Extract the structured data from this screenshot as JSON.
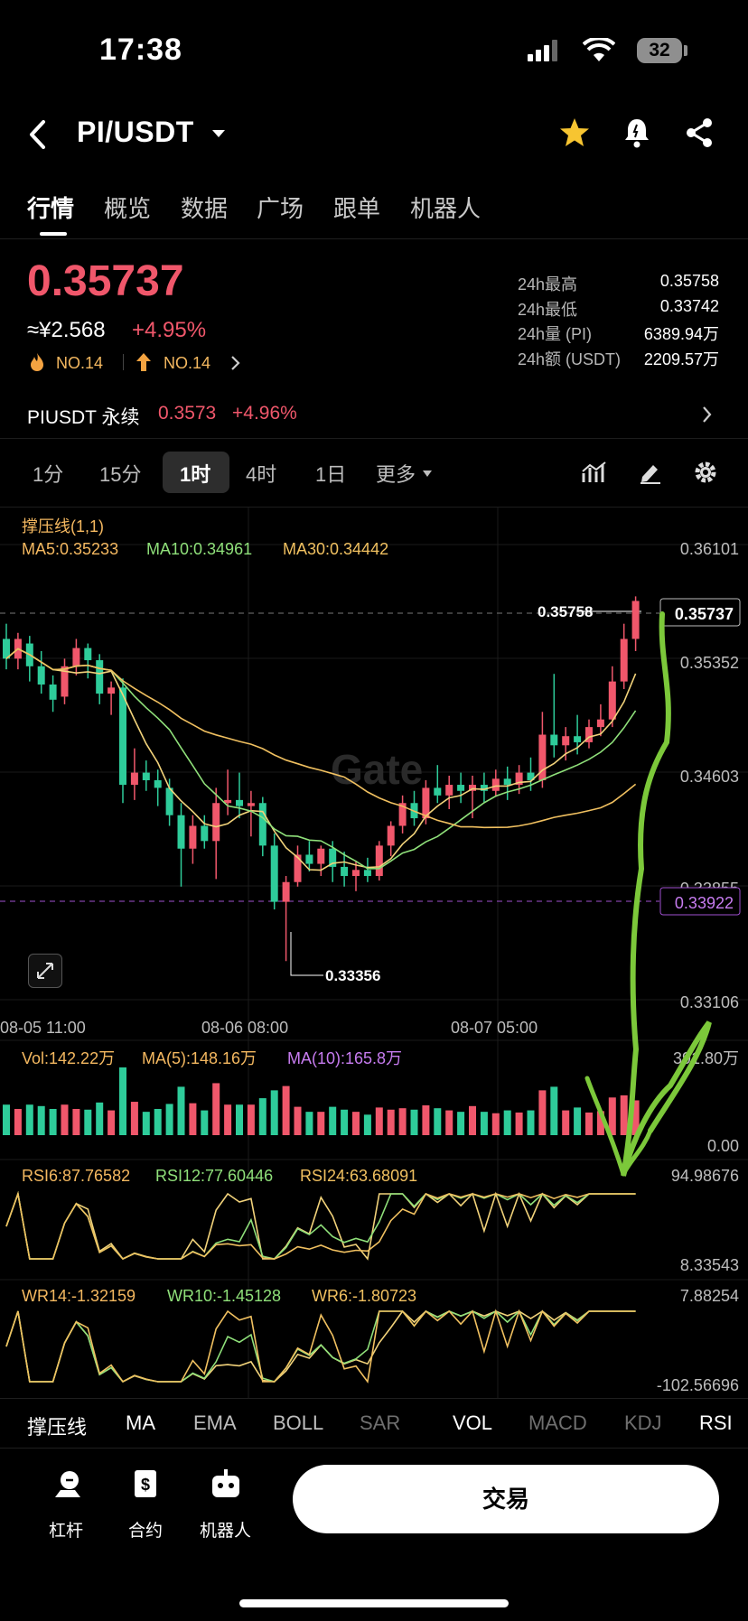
{
  "status_bar": {
    "time": "17:38",
    "battery": "32"
  },
  "header": {
    "pair": "PI/USDT"
  },
  "tabs": [
    "行情",
    "概览",
    "数据",
    "广场",
    "跟单",
    "机器人"
  ],
  "price": {
    "last": "0.35737",
    "cny": "≈¥2.568",
    "change": "+4.95%",
    "rank_hot": "NO.14",
    "rank_up": "NO.14"
  },
  "stats": [
    {
      "label": "24h最高",
      "value": "0.35758"
    },
    {
      "label": "24h最低",
      "value": "0.33742"
    },
    {
      "label": "24h量 (PI)",
      "value": "6389.94万"
    },
    {
      "label": "24h额 (USDT)",
      "value": "2209.57万"
    }
  ],
  "perp": {
    "name": "PIUSDT 永续",
    "price": "0.3573",
    "change": "+4.96%"
  },
  "intervals": [
    "1分",
    "15分",
    "1时",
    "4时",
    "1日",
    "更多"
  ],
  "chart_data": {
    "type": "candlestick",
    "indicator_title": "撑压线(1,1)",
    "ma_legend": {
      "ma5": "MA5:0.35233",
      "ma10": "MA10:0.34961",
      "ma30": "MA30:0.34442"
    },
    "y_ticks": [
      "0.36101",
      "0.35352",
      "0.34603",
      "0.33855",
      "0.33106"
    ],
    "ylim": [
      0.33106,
      0.36101
    ],
    "current_price_label": "0.35737",
    "support_line_label": "0.33922",
    "high_label": "0.35758",
    "low_label": "0.33356",
    "x_ticks": [
      "08-05 11:00",
      "08-06 08:00",
      "08-07 05:00"
    ],
    "watermark": "Gate",
    "candles": [
      {
        "o": 0.3548,
        "h": 0.3558,
        "l": 0.3528,
        "c": 0.3535
      },
      {
        "o": 0.3535,
        "h": 0.3552,
        "l": 0.3528,
        "c": 0.3548
      },
      {
        "o": 0.3545,
        "h": 0.355,
        "l": 0.352,
        "c": 0.353
      },
      {
        "o": 0.353,
        "h": 0.354,
        "l": 0.3512,
        "c": 0.3518
      },
      {
        "o": 0.3518,
        "h": 0.3524,
        "l": 0.35,
        "c": 0.3508
      },
      {
        "o": 0.351,
        "h": 0.3535,
        "l": 0.3505,
        "c": 0.353
      },
      {
        "o": 0.353,
        "h": 0.3548,
        "l": 0.3524,
        "c": 0.3542
      },
      {
        "o": 0.3542,
        "h": 0.3545,
        "l": 0.3522,
        "c": 0.3534
      },
      {
        "o": 0.3534,
        "h": 0.3538,
        "l": 0.3505,
        "c": 0.3512
      },
      {
        "o": 0.3512,
        "h": 0.352,
        "l": 0.3498,
        "c": 0.3516
      },
      {
        "o": 0.3516,
        "h": 0.3522,
        "l": 0.344,
        "c": 0.3452
      },
      {
        "o": 0.3452,
        "h": 0.3476,
        "l": 0.3442,
        "c": 0.346
      },
      {
        "o": 0.346,
        "h": 0.3468,
        "l": 0.3448,
        "c": 0.3455
      },
      {
        "o": 0.3455,
        "h": 0.3462,
        "l": 0.3438,
        "c": 0.345
      },
      {
        "o": 0.345,
        "h": 0.3456,
        "l": 0.3425,
        "c": 0.3432
      },
      {
        "o": 0.3432,
        "h": 0.344,
        "l": 0.3385,
        "c": 0.341
      },
      {
        "o": 0.341,
        "h": 0.3432,
        "l": 0.34,
        "c": 0.3425
      },
      {
        "o": 0.3425,
        "h": 0.3432,
        "l": 0.341,
        "c": 0.3415
      },
      {
        "o": 0.3415,
        "h": 0.345,
        "l": 0.339,
        "c": 0.344
      },
      {
        "o": 0.344,
        "h": 0.3462,
        "l": 0.3432,
        "c": 0.3442
      },
      {
        "o": 0.3442,
        "h": 0.346,
        "l": 0.343,
        "c": 0.3438
      },
      {
        "o": 0.3438,
        "h": 0.3448,
        "l": 0.3418,
        "c": 0.344
      },
      {
        "o": 0.344,
        "h": 0.3444,
        "l": 0.3405,
        "c": 0.3412
      },
      {
        "o": 0.3412,
        "h": 0.342,
        "l": 0.337,
        "c": 0.3375
      },
      {
        "o": 0.3375,
        "h": 0.3392,
        "l": 0.3336,
        "c": 0.3388
      },
      {
        "o": 0.3388,
        "h": 0.3412,
        "l": 0.3385,
        "c": 0.3406
      },
      {
        "o": 0.3406,
        "h": 0.3415,
        "l": 0.3395,
        "c": 0.34
      },
      {
        "o": 0.34,
        "h": 0.3412,
        "l": 0.3392,
        "c": 0.341
      },
      {
        "o": 0.341,
        "h": 0.3415,
        "l": 0.3388,
        "c": 0.3398
      },
      {
        "o": 0.3398,
        "h": 0.3408,
        "l": 0.3385,
        "c": 0.3392
      },
      {
        "o": 0.3392,
        "h": 0.3402,
        "l": 0.3382,
        "c": 0.3396
      },
      {
        "o": 0.3396,
        "h": 0.3404,
        "l": 0.3388,
        "c": 0.3392
      },
      {
        "o": 0.3392,
        "h": 0.3415,
        "l": 0.3389,
        "c": 0.3412
      },
      {
        "o": 0.3412,
        "h": 0.3428,
        "l": 0.3405,
        "c": 0.3425
      },
      {
        "o": 0.3425,
        "h": 0.3445,
        "l": 0.342,
        "c": 0.344
      },
      {
        "o": 0.344,
        "h": 0.3448,
        "l": 0.3425,
        "c": 0.343
      },
      {
        "o": 0.343,
        "h": 0.3455,
        "l": 0.3426,
        "c": 0.345
      },
      {
        "o": 0.345,
        "h": 0.3465,
        "l": 0.344,
        "c": 0.3445
      },
      {
        "o": 0.3445,
        "h": 0.3458,
        "l": 0.3436,
        "c": 0.3452
      },
      {
        "o": 0.3452,
        "h": 0.346,
        "l": 0.344,
        "c": 0.3448
      },
      {
        "o": 0.3448,
        "h": 0.3458,
        "l": 0.343,
        "c": 0.3452
      },
      {
        "o": 0.3452,
        "h": 0.346,
        "l": 0.344,
        "c": 0.3448
      },
      {
        "o": 0.3448,
        "h": 0.3462,
        "l": 0.3444,
        "c": 0.3456
      },
      {
        "o": 0.3456,
        "h": 0.3464,
        "l": 0.3442,
        "c": 0.3452
      },
      {
        "o": 0.3452,
        "h": 0.3465,
        "l": 0.3446,
        "c": 0.346
      },
      {
        "o": 0.346,
        "h": 0.347,
        "l": 0.3448,
        "c": 0.3455
      },
      {
        "o": 0.3455,
        "h": 0.35,
        "l": 0.345,
        "c": 0.3485
      },
      {
        "o": 0.3485,
        "h": 0.3525,
        "l": 0.347,
        "c": 0.3478
      },
      {
        "o": 0.3478,
        "h": 0.349,
        "l": 0.3468,
        "c": 0.3484
      },
      {
        "o": 0.3484,
        "h": 0.3498,
        "l": 0.3472,
        "c": 0.348
      },
      {
        "o": 0.348,
        "h": 0.3495,
        "l": 0.3476,
        "c": 0.349
      },
      {
        "o": 0.349,
        "h": 0.3505,
        "l": 0.3484,
        "c": 0.3495
      },
      {
        "o": 0.3495,
        "h": 0.353,
        "l": 0.349,
        "c": 0.352
      },
      {
        "o": 0.352,
        "h": 0.3558,
        "l": 0.3515,
        "c": 0.3548
      },
      {
        "o": 0.3548,
        "h": 0.3576,
        "l": 0.354,
        "c": 0.3573
      }
    ]
  },
  "volume": {
    "vol": "Vol:142.22万",
    "ma5": "MA(5):148.16万",
    "ma10": "MA(10):165.8万",
    "top": "391.80万",
    "bottom": "0.00"
  },
  "rsi": {
    "rsi6": "RSI6:87.76582",
    "rsi12": "RSI12:77.60446",
    "rsi24": "RSI24:63.68091",
    "top": "94.98676",
    "bottom": "8.33543"
  },
  "wr": {
    "wr14": "WR14:-1.32159",
    "wr10": "WR10:-1.45128",
    "wr6": "WR6:-1.80723",
    "top": "7.88254",
    "bottom": "-102.56696"
  },
  "indicator_tabs": [
    "撑压线",
    "MA",
    "EMA",
    "BOLL",
    "SAR",
    "VOL",
    "MACD",
    "KDJ",
    "RSI"
  ],
  "bottom_bar": {
    "items": [
      "杠杆",
      "合约",
      "机器人"
    ],
    "trade": "交易"
  },
  "colors": {
    "up": "#f0576b",
    "down": "#2ecc9a",
    "ma5": "#f1d27a",
    "ma10": "#8fe07a",
    "ma30": "#f0c060",
    "support": "#b34fd8",
    "annotation": "#7cc83a"
  }
}
